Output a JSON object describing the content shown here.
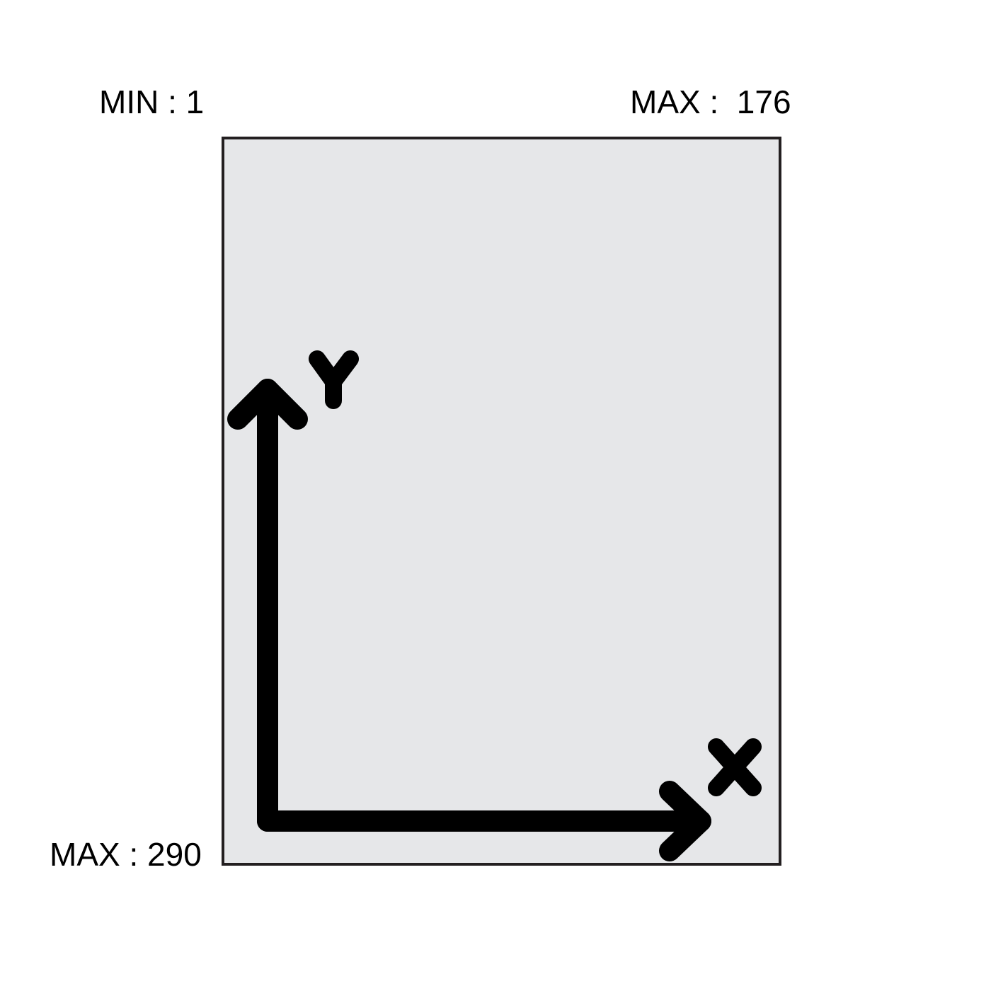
{
  "labels": {
    "min": "MIN : 1",
    "max_x": "MAX :  176",
    "max_y": "MAX : 290"
  },
  "axes": {
    "x_label": "X",
    "y_label": "Y"
  },
  "colors": {
    "page_background": "#ffffff",
    "frame_fill": "#e6e7e9",
    "frame_stroke": "#231f20",
    "axis_color": "#000000",
    "text_color": "#000000"
  }
}
